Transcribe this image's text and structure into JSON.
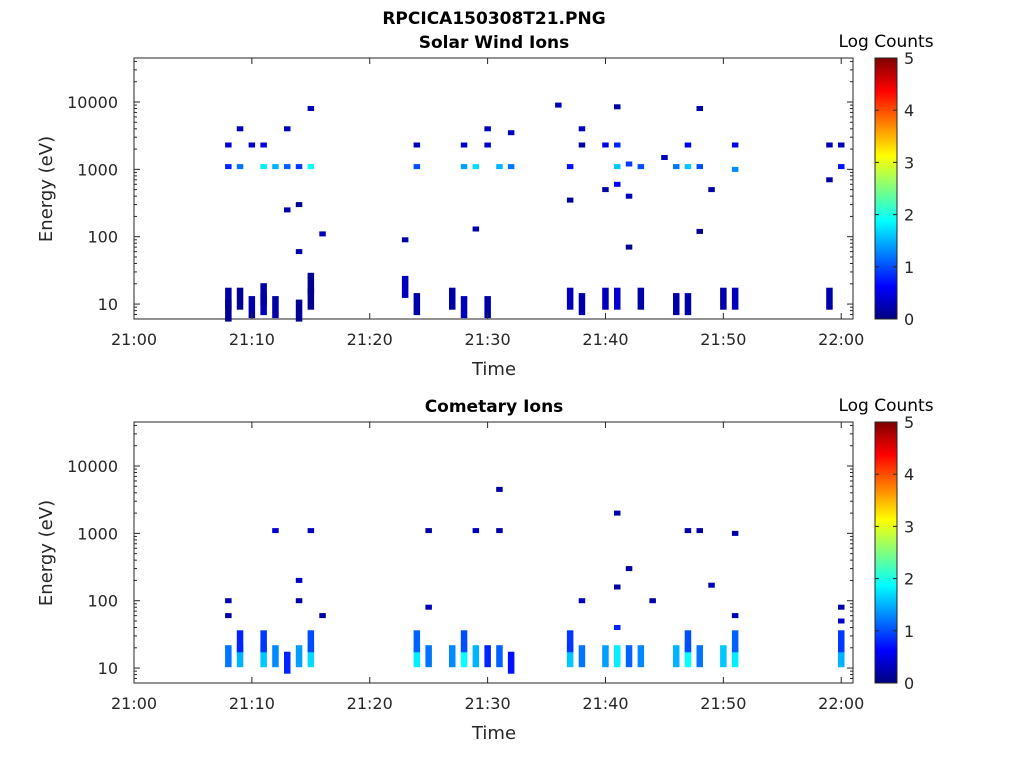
{
  "figure": {
    "title": "RPCICA150308T21.PNG"
  },
  "colorbar": {
    "label": "Log Counts",
    "min": 0,
    "max": 5,
    "ticks": [
      "0",
      "1",
      "2",
      "3",
      "4",
      "5"
    ]
  },
  "chart_data": [
    {
      "type": "heatmap",
      "title": "Solar Wind Ions",
      "xlabel": "Time",
      "ylabel": "Energy (eV)",
      "x_scale": "time",
      "y_scale": "log",
      "xlim": [
        "21:00",
        "22:01"
      ],
      "ylim": [
        6,
        45000
      ],
      "x_ticks": [
        "21:00",
        "21:10",
        "21:20",
        "21:30",
        "21:40",
        "21:50",
        "22:00"
      ],
      "y_ticks": [
        "10",
        "100",
        "1000",
        "10000"
      ],
      "cells": [
        [
          "21:08",
          1100,
          0.8
        ],
        [
          "21:08",
          2300,
          0.4
        ],
        [
          "21:08",
          12,
          0.2
        ],
        [
          "21:08",
          8,
          0.1
        ],
        [
          "21:09",
          1100,
          1.2
        ],
        [
          "21:09",
          4000,
          0.3
        ],
        [
          "21:09",
          12,
          0.1
        ],
        [
          "21:10",
          2300,
          0.4
        ],
        [
          "21:10",
          9,
          0.2
        ],
        [
          "21:11",
          1100,
          1.8
        ],
        [
          "21:11",
          2300,
          0.5
        ],
        [
          "21:11",
          10,
          0.3
        ],
        [
          "21:11",
          14,
          0.2
        ],
        [
          "21:12",
          1100,
          1.5
        ],
        [
          "21:12",
          9,
          0.2
        ],
        [
          "21:13",
          1100,
          1.1
        ],
        [
          "21:13",
          250,
          0.2
        ],
        [
          "21:13",
          4000,
          0.3
        ],
        [
          "21:14",
          1100,
          0.9
        ],
        [
          "21:14",
          60,
          0.2
        ],
        [
          "21:14",
          300,
          0.1
        ],
        [
          "21:14",
          8,
          0.1
        ],
        [
          "21:15",
          1100,
          1.9
        ],
        [
          "21:15",
          8000,
          0.3
        ],
        [
          "21:15",
          12,
          0.1
        ],
        [
          "21:15",
          20,
          0.1
        ],
        [
          "21:16",
          110,
          0.3
        ],
        [
          "21:23",
          90,
          0.2
        ],
        [
          "21:23",
          18,
          0.3
        ],
        [
          "21:24",
          2300,
          0.3
        ],
        [
          "21:24",
          1100,
          1.0
        ],
        [
          "21:24",
          10,
          0.2
        ],
        [
          "21:27",
          12,
          0.2
        ],
        [
          "21:28",
          1100,
          1.4
        ],
        [
          "21:28",
          2300,
          0.4
        ],
        [
          "21:28",
          9,
          0.3
        ],
        [
          "21:29",
          1100,
          1.7
        ],
        [
          "21:29",
          130,
          0.2
        ],
        [
          "21:30",
          2300,
          0.4
        ],
        [
          "21:30",
          4000,
          0.3
        ],
        [
          "21:30",
          9,
          0.2
        ],
        [
          "21:31",
          1100,
          1.5
        ],
        [
          "21:32",
          1100,
          1.2
        ],
        [
          "21:32",
          3500,
          0.3
        ],
        [
          "21:36",
          9000,
          0.3
        ],
        [
          "21:37",
          1100,
          0.7
        ],
        [
          "21:37",
          350,
          0.1
        ],
        [
          "21:37",
          12,
          0.3
        ],
        [
          "21:38",
          4000,
          0.3
        ],
        [
          "21:38",
          2300,
          0.2
        ],
        [
          "21:38",
          10,
          0.2
        ],
        [
          "21:40",
          2300,
          0.5
        ],
        [
          "21:40",
          500,
          0.2
        ],
        [
          "21:40",
          12,
          0.3
        ],
        [
          "21:41",
          1100,
          1.6
        ],
        [
          "21:41",
          2300,
          0.8
        ],
        [
          "21:41",
          600,
          0.6
        ],
        [
          "21:41",
          8500,
          0.2
        ],
        [
          "21:41",
          12,
          0.4
        ],
        [
          "21:42",
          1200,
          0.9
        ],
        [
          "21:42",
          400,
          0.3
        ],
        [
          "21:42",
          70,
          0.1
        ],
        [
          "21:43",
          1100,
          1.0
        ],
        [
          "21:43",
          12,
          0.2
        ],
        [
          "21:45",
          1500,
          0.3
        ],
        [
          "21:46",
          1100,
          1.2
        ],
        [
          "21:46",
          10,
          0.2
        ],
        [
          "21:47",
          1100,
          1.6
        ],
        [
          "21:47",
          2300,
          0.6
        ],
        [
          "21:47",
          10,
          0.2
        ],
        [
          "21:48",
          1100,
          1.0
        ],
        [
          "21:48",
          8000,
          0.2
        ],
        [
          "21:48",
          120,
          0.1
        ],
        [
          "21:49",
          500,
          0.2
        ],
        [
          "21:50",
          12,
          0.2
        ],
        [
          "21:51",
          1000,
          1.3
        ],
        [
          "21:51",
          2300,
          0.5
        ],
        [
          "21:51",
          12,
          0.3
        ],
        [
          "21:59",
          2300,
          0.3
        ],
        [
          "21:59",
          700,
          0.2
        ],
        [
          "21:59",
          12,
          0.2
        ],
        [
          "22:00",
          1100,
          0.7
        ],
        [
          "22:00",
          2300,
          0.3
        ]
      ]
    },
    {
      "type": "heatmap",
      "title": "Cometary Ions",
      "xlabel": "Time",
      "ylabel": "Energy (eV)",
      "x_scale": "time",
      "y_scale": "log",
      "xlim": [
        "21:00",
        "22:01"
      ],
      "ylim": [
        6,
        45000
      ],
      "x_ticks": [
        "21:00",
        "21:10",
        "21:20",
        "21:30",
        "21:40",
        "21:50",
        "22:00"
      ],
      "y_ticks": [
        "10",
        "100",
        "1000",
        "10000"
      ],
      "cells": [
        [
          "21:08",
          15,
          1.2
        ],
        [
          "21:08",
          100,
          0.3
        ],
        [
          "21:08",
          60,
          0.2
        ],
        [
          "21:09",
          15,
          1.5
        ],
        [
          "21:09",
          25,
          0.8
        ],
        [
          "21:11",
          15,
          1.6
        ],
        [
          "21:11",
          25,
          0.9
        ],
        [
          "21:12",
          15,
          1.3
        ],
        [
          "21:12",
          1100,
          0.4
        ],
        [
          "21:13",
          12,
          0.8
        ],
        [
          "21:14",
          15,
          1.4
        ],
        [
          "21:14",
          200,
          0.3
        ],
        [
          "21:14",
          100,
          0.2
        ],
        [
          "21:15",
          15,
          1.7
        ],
        [
          "21:15",
          25,
          1.0
        ],
        [
          "21:15",
          1100,
          0.3
        ],
        [
          "21:16",
          60,
          0.2
        ],
        [
          "21:24",
          15,
          1.8
        ],
        [
          "21:24",
          25,
          1.1
        ],
        [
          "21:25",
          15,
          1.2
        ],
        [
          "21:25",
          80,
          0.3
        ],
        [
          "21:25",
          1100,
          0.2
        ],
        [
          "21:27",
          15,
          1.3
        ],
        [
          "21:28",
          15,
          1.9
        ],
        [
          "21:28",
          25,
          1.0
        ],
        [
          "21:29",
          15,
          1.5
        ],
        [
          "21:29",
          1100,
          0.3
        ],
        [
          "21:30",
          15,
          0.8
        ],
        [
          "21:31",
          15,
          1.1
        ],
        [
          "21:31",
          4500,
          0.2
        ],
        [
          "21:31",
          1100,
          0.2
        ],
        [
          "21:32",
          12,
          0.7
        ],
        [
          "21:37",
          15,
          1.6
        ],
        [
          "21:37",
          25,
          0.9
        ],
        [
          "21:38",
          15,
          1.2
        ],
        [
          "21:38",
          100,
          0.3
        ],
        [
          "21:40",
          15,
          1.4
        ],
        [
          "21:41",
          15,
          1.8
        ],
        [
          "21:41",
          40,
          0.8
        ],
        [
          "21:41",
          2000,
          0.2
        ],
        [
          "21:41",
          160,
          0.2
        ],
        [
          "21:42",
          15,
          1.1
        ],
        [
          "21:42",
          300,
          0.2
        ],
        [
          "21:43",
          15,
          1.3
        ],
        [
          "21:44",
          100,
          0.2
        ],
        [
          "21:46",
          15,
          1.5
        ],
        [
          "21:47",
          15,
          1.9
        ],
        [
          "21:47",
          25,
          1.0
        ],
        [
          "21:47",
          1100,
          0.2
        ],
        [
          "21:48",
          15,
          1.2
        ],
        [
          "21:48",
          1100,
          0.2
        ],
        [
          "21:49",
          170,
          0.3
        ],
        [
          "21:50",
          15,
          1.6
        ],
        [
          "21:51",
          15,
          1.8
        ],
        [
          "21:51",
          25,
          1.1
        ],
        [
          "21:51",
          1000,
          0.2
        ],
        [
          "21:51",
          60,
          0.3
        ],
        [
          "22:00",
          15,
          1.5
        ],
        [
          "22:00",
          25,
          0.9
        ],
        [
          "22:00",
          50,
          0.4
        ],
        [
          "22:00",
          80,
          0.2
        ]
      ]
    }
  ]
}
